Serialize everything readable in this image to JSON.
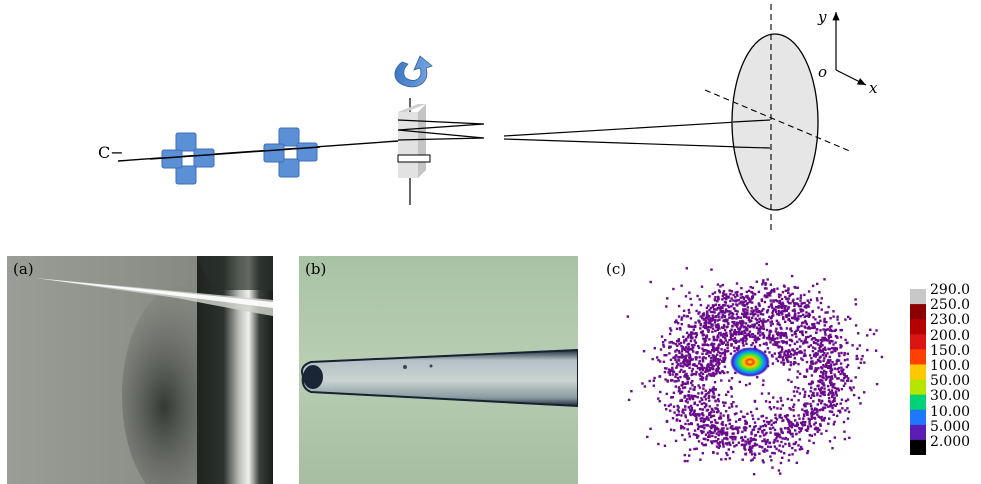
{
  "schematic": {
    "beam_label": "C−",
    "axis_y": "y",
    "axis_origin": "o",
    "axis_x": "x"
  },
  "panels": {
    "a": {
      "label": "(a)"
    },
    "b": {
      "label": "(b)"
    },
    "c": {
      "label": "(c)"
    }
  },
  "colorbar": {
    "labels": [
      "290.0",
      "250.0",
      "230.0",
      "200.0",
      "150.0",
      "100.0",
      "50.00",
      "30.00",
      "10.00",
      "5.000",
      "2.000"
    ],
    "colors": [
      "#c8c8c8",
      "#8b0000",
      "#b40000",
      "#dc1414",
      "#ff4000",
      "#ffc800",
      "#b4e600",
      "#00d278",
      "#1e78ff",
      "#5a1eb4",
      "#000000"
    ]
  },
  "colors": {
    "quadrupole": "#5b8fd6",
    "detector": "#e6e6e6",
    "scatter_ring": "#6a0a8c"
  }
}
